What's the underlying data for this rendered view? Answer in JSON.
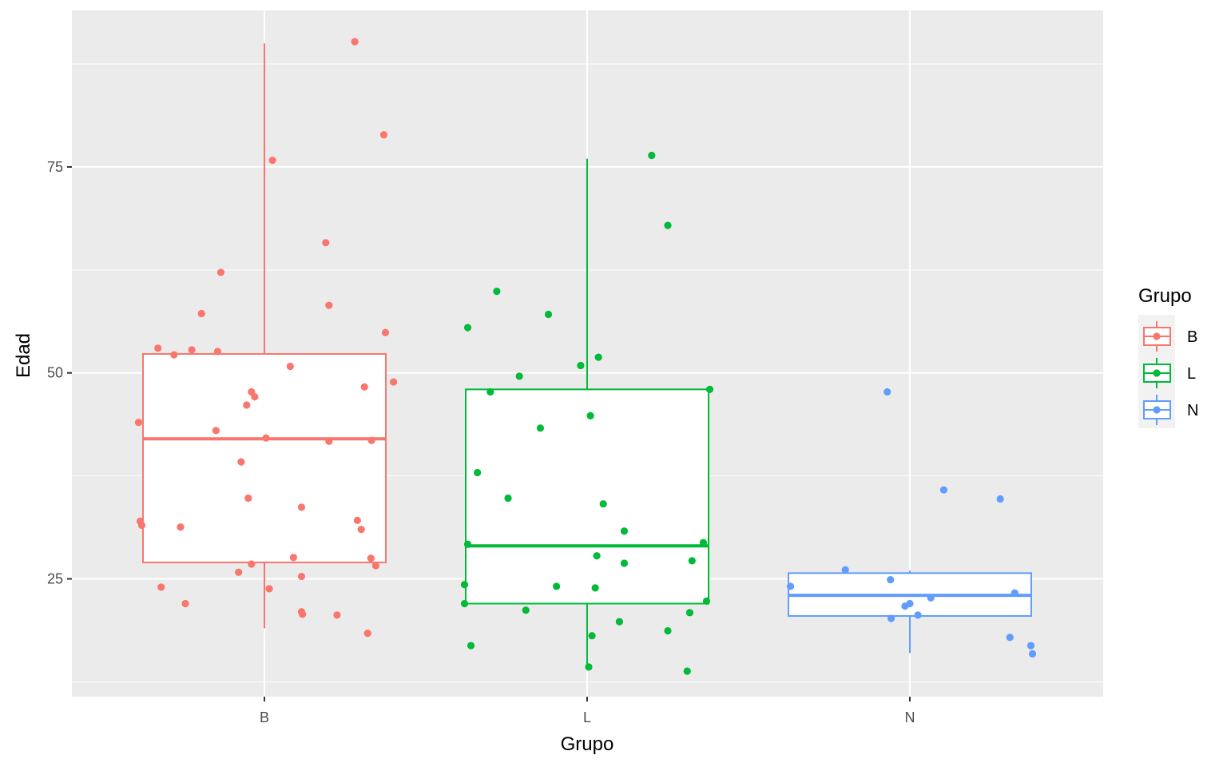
{
  "chart_data": {
    "type": "boxplot",
    "xlabel": "Grupo",
    "ylabel": "Edad",
    "categories": [
      "B",
      "L",
      "N"
    ],
    "ylim": [
      10.7,
      94
    ],
    "y_ticks": [
      25,
      50,
      75
    ],
    "y_tick_labels": [
      "25",
      "50",
      "75"
    ],
    "y_minor_ticks": [
      12.5,
      37.5,
      62.5,
      87.5
    ],
    "grid": true,
    "legend": {
      "title": "Grupo",
      "position": "right",
      "entries": [
        "B",
        "L",
        "N"
      ]
    },
    "colors": {
      "B": "#F8766D",
      "L": "#00BA38",
      "N": "#619CFF",
      "panel": "#EBEBEB",
      "grid": "#FFFFFF"
    },
    "boxes": [
      {
        "group": "B",
        "whisker_low": 19,
        "q1": 27,
        "median": 42,
        "q3": 52.3,
        "whisker_high": 90
      },
      {
        "group": "L",
        "whisker_low": 14.2,
        "q1": 22,
        "median": 29,
        "q3": 48,
        "whisker_high": 76
      },
      {
        "group": "N",
        "whisker_low": 16,
        "q1": 20.5,
        "median": 23,
        "q3": 25.7,
        "whisker_high": 26
      }
    ],
    "points": [
      {
        "group": "B",
        "x_jitter": -0.39,
        "y": 44
      },
      {
        "group": "B",
        "x_jitter": -0.385,
        "y": 32
      },
      {
        "group": "B",
        "x_jitter": -0.38,
        "y": 31.5
      },
      {
        "group": "B",
        "x_jitter": -0.33,
        "y": 53
      },
      {
        "group": "B",
        "x_jitter": -0.32,
        "y": 24
      },
      {
        "group": "B",
        "x_jitter": -0.28,
        "y": 52.2
      },
      {
        "group": "B",
        "x_jitter": -0.26,
        "y": 31.3
      },
      {
        "group": "B",
        "x_jitter": -0.245,
        "y": 22
      },
      {
        "group": "B",
        "x_jitter": -0.225,
        "y": 52.8
      },
      {
        "group": "B",
        "x_jitter": -0.195,
        "y": 57.2
      },
      {
        "group": "B",
        "x_jitter": -0.15,
        "y": 43
      },
      {
        "group": "B",
        "x_jitter": -0.145,
        "y": 52.6
      },
      {
        "group": "B",
        "x_jitter": -0.135,
        "y": 62.2
      },
      {
        "group": "B",
        "x_jitter": -0.08,
        "y": 25.8
      },
      {
        "group": "B",
        "x_jitter": -0.072,
        "y": 39.2
      },
      {
        "group": "B",
        "x_jitter": -0.055,
        "y": 46.1
      },
      {
        "group": "B",
        "x_jitter": -0.05,
        "y": 34.8
      },
      {
        "group": "B",
        "x_jitter": -0.04,
        "y": 47.7
      },
      {
        "group": "B",
        "x_jitter": -0.04,
        "y": 26.8
      },
      {
        "group": "B",
        "x_jitter": -0.03,
        "y": 47.1
      },
      {
        "group": "B",
        "x_jitter": 0.005,
        "y": 42.1
      },
      {
        "group": "B",
        "x_jitter": 0.015,
        "y": 23.8
      },
      {
        "group": "B",
        "x_jitter": 0.025,
        "y": 75.8
      },
      {
        "group": "B",
        "x_jitter": 0.08,
        "y": 50.8
      },
      {
        "group": "B",
        "x_jitter": 0.09,
        "y": 27.6
      },
      {
        "group": "B",
        "x_jitter": 0.115,
        "y": 33.7
      },
      {
        "group": "B",
        "x_jitter": 0.115,
        "y": 25.3
      },
      {
        "group": "B",
        "x_jitter": 0.115,
        "y": 21
      },
      {
        "group": "B",
        "x_jitter": 0.118,
        "y": 20.7
      },
      {
        "group": "B",
        "x_jitter": 0.19,
        "y": 65.8
      },
      {
        "group": "B",
        "x_jitter": 0.2,
        "y": 58.2
      },
      {
        "group": "B",
        "x_jitter": 0.2,
        "y": 41.7
      },
      {
        "group": "B",
        "x_jitter": 0.225,
        "y": 20.6
      },
      {
        "group": "B",
        "x_jitter": 0.28,
        "y": 90.2
      },
      {
        "group": "B",
        "x_jitter": 0.288,
        "y": 32.1
      },
      {
        "group": "B",
        "x_jitter": 0.3,
        "y": 31
      },
      {
        "group": "B",
        "x_jitter": 0.31,
        "y": 48.3
      },
      {
        "group": "B",
        "x_jitter": 0.32,
        "y": 18.4
      },
      {
        "group": "B",
        "x_jitter": 0.33,
        "y": 27.5
      },
      {
        "group": "B",
        "x_jitter": 0.332,
        "y": 41.8
      },
      {
        "group": "B",
        "x_jitter": 0.345,
        "y": 26.6
      },
      {
        "group": "B",
        "x_jitter": 0.37,
        "y": 78.9
      },
      {
        "group": "B",
        "x_jitter": 0.375,
        "y": 54.9
      },
      {
        "group": "B",
        "x_jitter": 0.4,
        "y": 48.9
      },
      {
        "group": "L",
        "x_jitter": -0.38,
        "y": 24.3
      },
      {
        "group": "L",
        "x_jitter": -0.38,
        "y": 22
      },
      {
        "group": "L",
        "x_jitter": -0.37,
        "y": 29.2
      },
      {
        "group": "L",
        "x_jitter": -0.37,
        "y": 55.5
      },
      {
        "group": "L",
        "x_jitter": -0.36,
        "y": 16.9
      },
      {
        "group": "L",
        "x_jitter": -0.34,
        "y": 37.9
      },
      {
        "group": "L",
        "x_jitter": -0.3,
        "y": 47.7
      },
      {
        "group": "L",
        "x_jitter": -0.28,
        "y": 59.9
      },
      {
        "group": "L",
        "x_jitter": -0.245,
        "y": 34.8
      },
      {
        "group": "L",
        "x_jitter": -0.21,
        "y": 49.6
      },
      {
        "group": "L",
        "x_jitter": -0.19,
        "y": 21.2
      },
      {
        "group": "L",
        "x_jitter": -0.145,
        "y": 43.3
      },
      {
        "group": "L",
        "x_jitter": -0.12,
        "y": 57.1
      },
      {
        "group": "L",
        "x_jitter": -0.095,
        "y": 24.1
      },
      {
        "group": "L",
        "x_jitter": -0.02,
        "y": 50.9
      },
      {
        "group": "L",
        "x_jitter": 0.005,
        "y": 14.3
      },
      {
        "group": "L",
        "x_jitter": 0.01,
        "y": 44.8
      },
      {
        "group": "L",
        "x_jitter": 0.015,
        "y": 18.1
      },
      {
        "group": "L",
        "x_jitter": 0.025,
        "y": 23.9
      },
      {
        "group": "L",
        "x_jitter": 0.03,
        "y": 27.8
      },
      {
        "group": "L",
        "x_jitter": 0.035,
        "y": 51.9
      },
      {
        "group": "L",
        "x_jitter": 0.05,
        "y": 34.1
      },
      {
        "group": "L",
        "x_jitter": 0.1,
        "y": 19.8
      },
      {
        "group": "L",
        "x_jitter": 0.115,
        "y": 26.9
      },
      {
        "group": "L",
        "x_jitter": 0.115,
        "y": 30.8
      },
      {
        "group": "L",
        "x_jitter": 0.2,
        "y": 76.4
      },
      {
        "group": "L",
        "x_jitter": 0.25,
        "y": 18.7
      },
      {
        "group": "L",
        "x_jitter": 0.25,
        "y": 67.9
      },
      {
        "group": "L",
        "x_jitter": 0.31,
        "y": 13.8
      },
      {
        "group": "L",
        "x_jitter": 0.318,
        "y": 20.9
      },
      {
        "group": "L",
        "x_jitter": 0.325,
        "y": 27.2
      },
      {
        "group": "L",
        "x_jitter": 0.36,
        "y": 29.4
      },
      {
        "group": "L",
        "x_jitter": 0.37,
        "y": 22.3
      },
      {
        "group": "L",
        "x_jitter": 0.38,
        "y": 48
      },
      {
        "group": "N",
        "x_jitter": -0.37,
        "y": 24.1
      },
      {
        "group": "N",
        "x_jitter": -0.2,
        "y": 26.1
      },
      {
        "group": "N",
        "x_jitter": -0.07,
        "y": 47.7
      },
      {
        "group": "N",
        "x_jitter": -0.06,
        "y": 24.9
      },
      {
        "group": "N",
        "x_jitter": -0.058,
        "y": 20.2
      },
      {
        "group": "N",
        "x_jitter": -0.015,
        "y": 21.7
      },
      {
        "group": "N",
        "x_jitter": 0.0,
        "y": 22
      },
      {
        "group": "N",
        "x_jitter": 0.025,
        "y": 20.6
      },
      {
        "group": "N",
        "x_jitter": 0.065,
        "y": 22.7
      },
      {
        "group": "N",
        "x_jitter": 0.105,
        "y": 35.8
      },
      {
        "group": "N",
        "x_jitter": 0.28,
        "y": 34.7
      },
      {
        "group": "N",
        "x_jitter": 0.31,
        "y": 17.9
      },
      {
        "group": "N",
        "x_jitter": 0.325,
        "y": 23.3
      },
      {
        "group": "N",
        "x_jitter": 0.375,
        "y": 16.9
      },
      {
        "group": "N",
        "x_jitter": 0.38,
        "y": 15.9
      }
    ]
  }
}
